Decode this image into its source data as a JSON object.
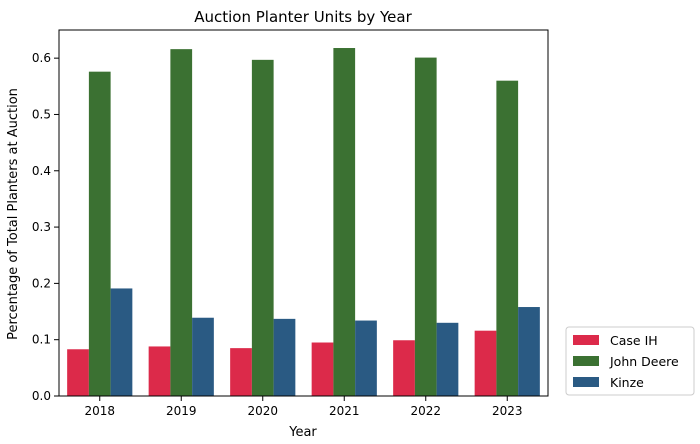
{
  "chart_data": {
    "type": "bar",
    "title": "Auction Planter Units by Year",
    "xlabel": "Year",
    "ylabel": "Percentage of Total Planters at Auction",
    "categories": [
      "2018",
      "2019",
      "2020",
      "2021",
      "2022",
      "2023"
    ],
    "ylim": [
      0,
      0.65
    ],
    "yticks": [
      "0.0",
      "0.1",
      "0.2",
      "0.3",
      "0.4",
      "0.5",
      "0.6"
    ],
    "grid": false,
    "legend_position": "outside-lower-right",
    "series": [
      {
        "name": "Case IH",
        "color": "#dc2a4a",
        "values": [
          0.083,
          0.088,
          0.085,
          0.095,
          0.099,
          0.116
        ]
      },
      {
        "name": "John Deere",
        "color": "#3b7132",
        "values": [
          0.576,
          0.616,
          0.597,
          0.618,
          0.601,
          0.56
        ]
      },
      {
        "name": "Kinze",
        "color": "#2a5a83",
        "values": [
          0.191,
          0.139,
          0.137,
          0.134,
          0.13,
          0.158
        ]
      }
    ]
  }
}
